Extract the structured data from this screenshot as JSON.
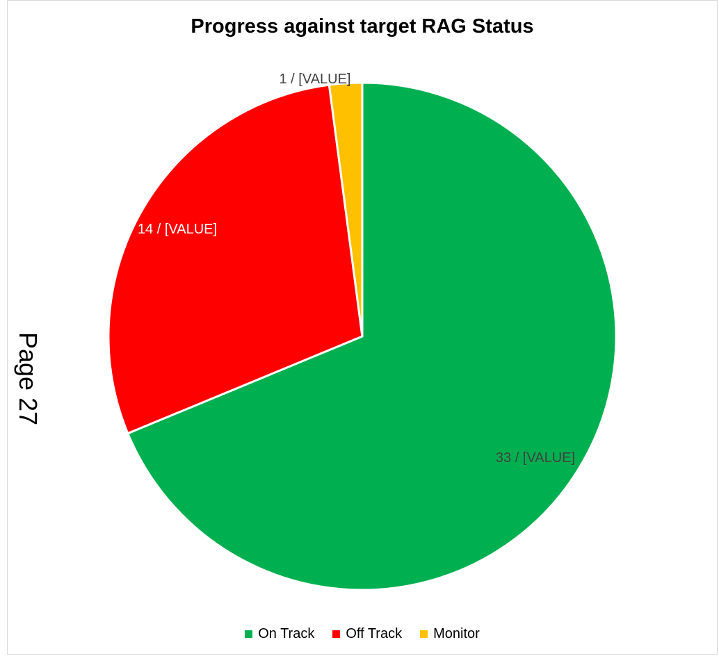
{
  "page": {
    "number_label": "Page 27"
  },
  "chart_data": {
    "type": "pie",
    "title": "Progress against target RAG Status",
    "categories": [
      "On Track",
      "Off Track",
      "Monitor"
    ],
    "values": [
      33,
      14,
      1
    ],
    "data_labels": [
      "33 / [VALUE]",
      "14 / [VALUE]",
      "1 / [VALUE]"
    ],
    "colors": [
      "#00b050",
      "#ff0000",
      "#ffc000"
    ],
    "label_colors": [
      "#404040",
      "#ffffff",
      "#404040"
    ],
    "legend_position": "bottom",
    "start_angle_deg": 0,
    "direction": "clockwise"
  }
}
